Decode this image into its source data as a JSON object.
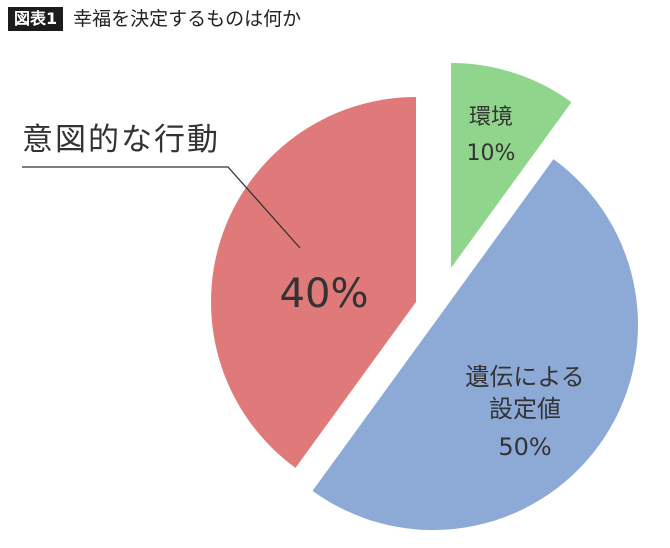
{
  "figure": {
    "badge": "図表1",
    "title": "幸福を決定するものは何か"
  },
  "chart_data": {
    "type": "pie",
    "title": "幸福を決定するものは何か",
    "slices": [
      {
        "label": "環境",
        "value": 10,
        "value_label": "10%",
        "color": "#8fd68c"
      },
      {
        "label": "遺伝による設定値",
        "value": 50,
        "value_label": "50%",
        "color": "#8daad6"
      },
      {
        "label": "意図的な行動",
        "value": 40,
        "value_label": "40%",
        "color": "#e07a7a"
      }
    ],
    "exploded": true,
    "callout": {
      "slice": "意図的な行動"
    }
  }
}
